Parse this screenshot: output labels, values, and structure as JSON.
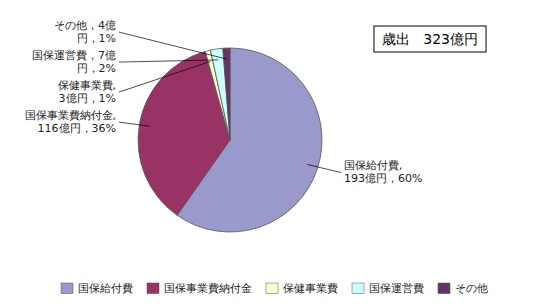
{
  "chart_data": {
    "type": "pie",
    "title": "歳出   323億円",
    "categories": [
      "国保給付費",
      "国保事業費納付金",
      "保健事業費",
      "国保運営費",
      "その他"
    ],
    "values": [
      193,
      116,
      3,
      7,
      4
    ],
    "value_labels": [
      "国保給付費,\n193億円，60%",
      "国保事業費納付金,\n116億円，36%",
      "保健事業費,\n3億円，1%",
      "国保運営費，7億\n円，2%",
      "その他，4億\n円，1%"
    ],
    "colors": [
      "#9999CC",
      "#993366",
      "#FFFFCC",
      "#CCFFFF",
      "#663366"
    ],
    "data_labels": true,
    "legend": "bottom"
  }
}
